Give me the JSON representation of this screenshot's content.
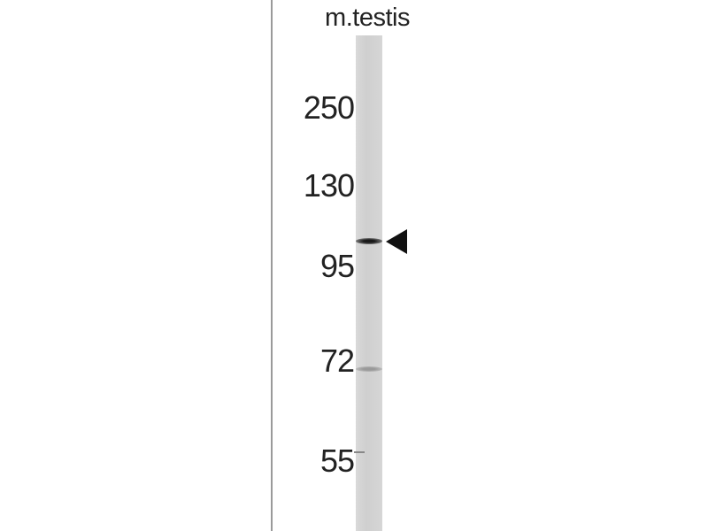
{
  "lane_label": "m.testis",
  "markers": [
    {
      "label": "250"
    },
    {
      "label": "130"
    },
    {
      "label": "95"
    },
    {
      "label": "72"
    },
    {
      "label": "55"
    }
  ],
  "arrow_icon": "left-pointing-triangle",
  "colors": {
    "lane": "#d4d4d4",
    "band": "#222222",
    "arrow": "#111111"
  }
}
